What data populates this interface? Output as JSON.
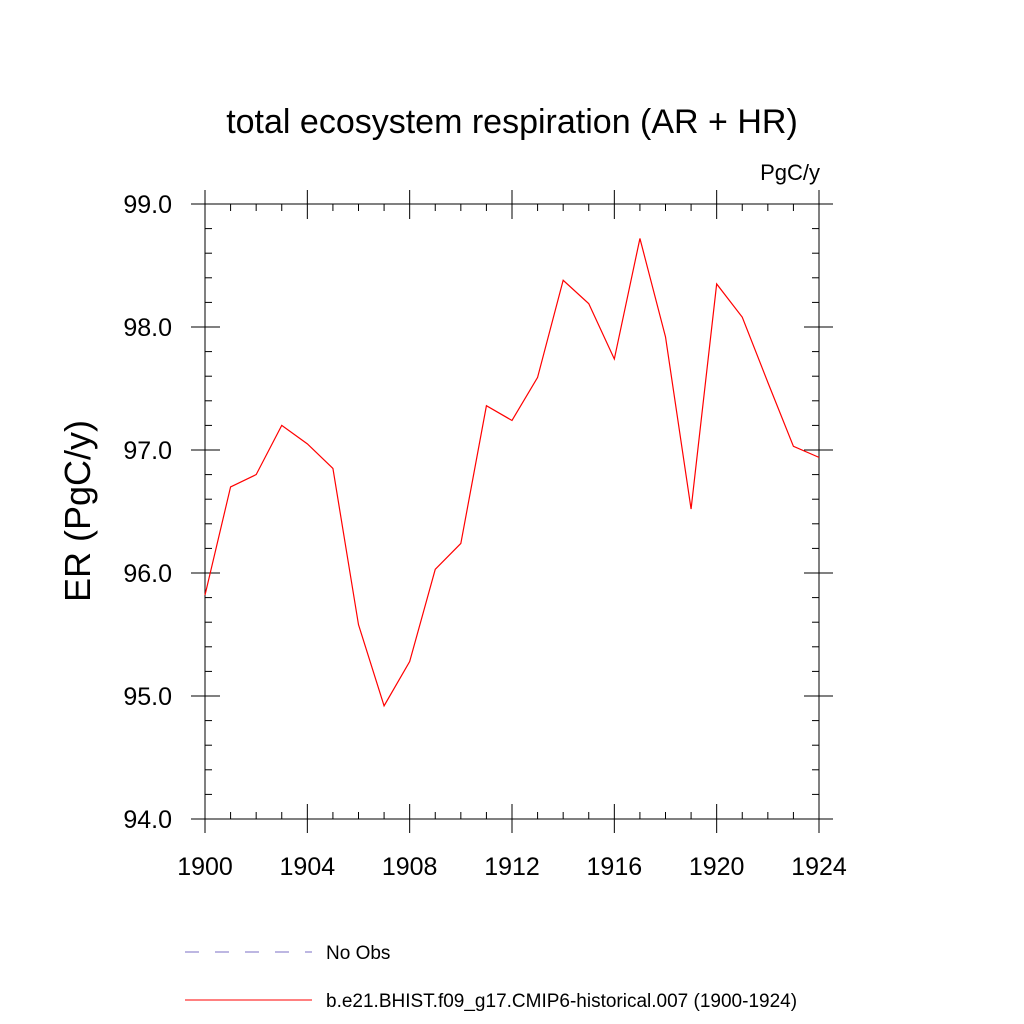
{
  "chart_data": {
    "type": "line",
    "title": "total ecosystem respiration (AR + HR)",
    "units": "PgC/y",
    "xlabel": "",
    "ylabel": "ER  (PgC/y)",
    "xlim": [
      1900,
      1924
    ],
    "ylim": [
      94.0,
      99.0
    ],
    "x_ticks": [
      1900,
      1904,
      1908,
      1912,
      1916,
      1920,
      1924
    ],
    "y_ticks": [
      94.0,
      95.0,
      96.0,
      97.0,
      98.0,
      99.0
    ],
    "x_tick_labels": [
      "1900",
      "1904",
      "1908",
      "1912",
      "1916",
      "1920",
      "1924"
    ],
    "y_tick_labels": [
      "94.0",
      "95.0",
      "96.0",
      "97.0",
      "98.0",
      "99.0"
    ],
    "grid": false,
    "legend_position": "bottom",
    "series": [
      {
        "name": "b.e21.BHIST.f09_g17.CMIP6-historical.007 (1900-1924)",
        "color": "#ff0000",
        "style": "solid",
        "x": [
          1900,
          1901,
          1902,
          1903,
          1904,
          1905,
          1906,
          1907,
          1908,
          1909,
          1910,
          1911,
          1912,
          1913,
          1914,
          1915,
          1916,
          1917,
          1918,
          1919,
          1920,
          1921,
          1922,
          1923,
          1924
        ],
        "y": [
          95.82,
          96.7,
          96.8,
          97.2,
          97.05,
          96.85,
          95.58,
          94.92,
          95.28,
          96.03,
          96.24,
          97.36,
          97.24,
          97.59,
          98.38,
          98.19,
          97.74,
          98.72,
          97.92,
          96.52,
          98.35,
          98.08,
          97.55,
          97.03,
          96.94
        ]
      }
    ],
    "legend": [
      {
        "label": "No Obs",
        "color": "#7b6fc4",
        "style": "dashed"
      },
      {
        "label": "b.e21.BHIST.f09_g17.CMIP6-historical.007 (1900-1924)",
        "color": "#ff0000",
        "style": "solid"
      }
    ]
  }
}
